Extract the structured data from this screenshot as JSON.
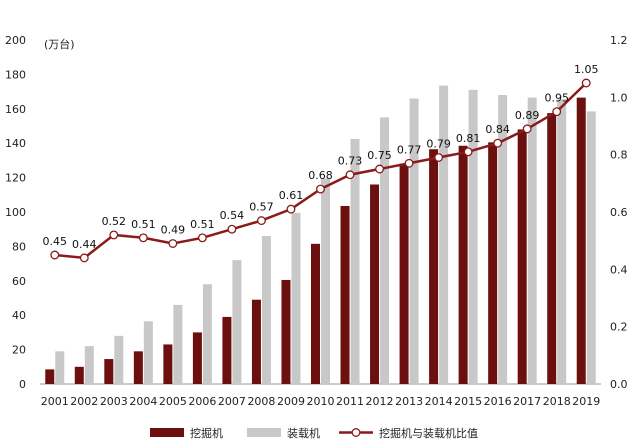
{
  "chart_data": {
    "type": "bar",
    "unit_label": "(万台)",
    "categories": [
      "2001",
      "2002",
      "2003",
      "2004",
      "2005",
      "2006",
      "2007",
      "2008",
      "2009",
      "2010",
      "2011",
      "2012",
      "2013",
      "2014",
      "2015",
      "2016",
      "2017",
      "2018",
      "2019"
    ],
    "series": [
      {
        "name": "挖掘机",
        "type": "bar",
        "axis": "left",
        "color": "#6b0f0f",
        "values": [
          8.5,
          10,
          14.5,
          19,
          23,
          30,
          39,
          49,
          60.5,
          81.5,
          103.5,
          116,
          128,
          136.5,
          138.5,
          140.5,
          148,
          157.5,
          166.5
        ]
      },
      {
        "name": "装载机",
        "type": "bar",
        "axis": "left",
        "color": "#c8c8c8",
        "values": [
          19,
          22,
          28,
          36.5,
          46,
          58,
          72,
          86,
          99.5,
          119.5,
          142.5,
          155,
          166,
          173.5,
          171,
          168,
          166.5,
          165.5,
          158.5
        ]
      },
      {
        "name": "挖掘机与装载机比值",
        "type": "line",
        "axis": "right",
        "color": "#8b1a1a",
        "values": [
          0.45,
          0.44,
          0.52,
          0.51,
          0.49,
          0.51,
          0.54,
          0.57,
          0.61,
          0.68,
          0.73,
          0.75,
          0.77,
          0.79,
          0.81,
          0.84,
          0.89,
          0.95,
          1.05
        ],
        "labels": [
          "0.45",
          "0.44",
          "0.52",
          "0.51",
          "0.49",
          "0.51",
          "0.54",
          "0.57",
          "0.61",
          "0.68",
          "0.73",
          "0.75",
          "0.77",
          "0.79",
          "0.81",
          "0.84",
          "0.89",
          "0.95",
          "1.05"
        ]
      }
    ],
    "y_left": {
      "min": 0,
      "max": 200,
      "ticks": [
        "0",
        "20",
        "40",
        "60",
        "80",
        "100",
        "120",
        "140",
        "160",
        "180",
        "200"
      ]
    },
    "y_right": {
      "min": 0,
      "max": 1.2,
      "ticks": [
        "0.0",
        "0.2",
        "0.4",
        "0.6",
        "0.8",
        "1.0",
        "1.2"
      ]
    },
    "grid": false,
    "legend_position": "bottom"
  }
}
